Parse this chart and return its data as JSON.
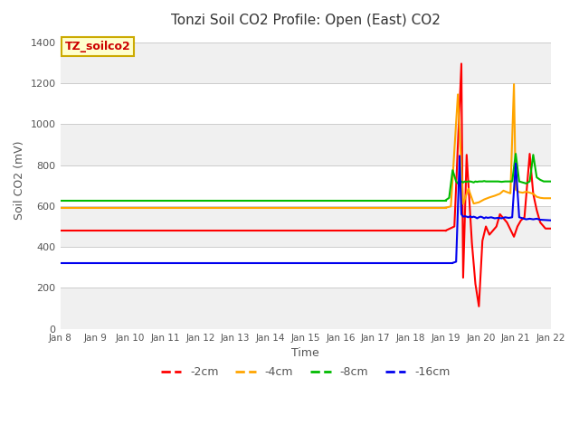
{
  "title": "Tonzi Soil CO2 Profile: Open (East) CO2",
  "xlabel": "Time",
  "ylabel": "Soil CO2 (mV)",
  "ylim": [
    0,
    1450
  ],
  "yticks": [
    0,
    200,
    400,
    600,
    800,
    1000,
    1200,
    1400
  ],
  "xlim_start": 8,
  "xlim_end": 22,
  "xtick_labels": [
    "Jan 8",
    "Jan 9",
    "Jan 10",
    "Jan 11",
    "Jan 12",
    "Jan 13",
    "Jan 14",
    "Jan 15",
    "Jan 16",
    "Jan 17",
    "Jan 18",
    "Jan 19",
    "Jan 20",
    "Jan 21",
    "Jan 22"
  ],
  "figure_bg": "#ffffff",
  "plot_bg_light": "#f0f0f0",
  "plot_bg_white": "#ffffff",
  "legend_label": "TZ_soilco2",
  "legend_box_color": "#ffffcc",
  "legend_box_edge": "#ccaa00",
  "series": [
    {
      "label": "-2cm",
      "color": "#ff0000",
      "flat_value": 480,
      "flat_start": 8,
      "flat_end": 19.0,
      "spike_x": [
        19.0,
        19.25,
        19.45,
        19.5,
        19.6,
        19.75,
        19.85,
        19.95,
        20.05,
        20.15,
        20.25,
        20.45,
        20.55,
        20.65,
        20.75,
        20.95,
        21.05,
        21.15,
        21.25,
        21.4,
        21.5,
        21.6,
        21.7,
        21.85,
        22.0
      ],
      "spike_y": [
        480,
        500,
        1295,
        250,
        850,
        420,
        220,
        110,
        430,
        500,
        460,
        500,
        560,
        540,
        520,
        450,
        500,
        530,
        545,
        855,
        660,
        580,
        520,
        490,
        490
      ]
    },
    {
      "label": "-4cm",
      "color": "#ffa500",
      "flat_value": 592,
      "flat_start": 8,
      "flat_end": 19.0,
      "spike_x": [
        19.0,
        19.15,
        19.35,
        19.5,
        19.65,
        19.8,
        19.95,
        20.1,
        20.25,
        20.4,
        20.55,
        20.65,
        20.75,
        20.85,
        20.95,
        21.0,
        21.1,
        21.2,
        21.3,
        21.5,
        21.6,
        21.7,
        21.8,
        22.0
      ],
      "spike_y": [
        592,
        598,
        1145,
        610,
        685,
        612,
        618,
        632,
        642,
        650,
        660,
        675,
        668,
        662,
        1195,
        680,
        668,
        665,
        670,
        660,
        645,
        640,
        638,
        638
      ]
    },
    {
      "label": "-8cm",
      "color": "#00bb00",
      "flat_value": 628,
      "flat_start": 8,
      "flat_end": 19.0,
      "spike_x": [
        19.0,
        19.1,
        19.2,
        19.3,
        19.35,
        19.4,
        19.45,
        19.5,
        19.55,
        19.6,
        19.65,
        19.7,
        19.75,
        19.8,
        19.85,
        19.9,
        19.95,
        20.0,
        20.05,
        20.1,
        20.15,
        20.2,
        20.3,
        20.4,
        20.5,
        20.6,
        20.7,
        20.8,
        20.9,
        21.0,
        21.1,
        21.2,
        21.3,
        21.4,
        21.5,
        21.6,
        21.7,
        21.8,
        22.0
      ],
      "spike_y": [
        628,
        640,
        775,
        720,
        710,
        715,
        720,
        715,
        720,
        718,
        720,
        720,
        718,
        715,
        720,
        718,
        720,
        720,
        720,
        722,
        720,
        720,
        720,
        720,
        720,
        718,
        720,
        720,
        720,
        855,
        720,
        715,
        710,
        720,
        850,
        740,
        728,
        720,
        720
      ]
    },
    {
      "label": "-16cm",
      "color": "#0000ee",
      "flat_value": 322,
      "flat_start": 8,
      "flat_end": 19.2,
      "spike_x": [
        19.2,
        19.3,
        19.4,
        19.45,
        19.5,
        19.55,
        19.6,
        19.65,
        19.7,
        19.75,
        19.8,
        19.85,
        19.9,
        19.95,
        20.0,
        20.05,
        20.1,
        20.15,
        20.2,
        20.3,
        20.4,
        20.5,
        20.6,
        20.7,
        20.8,
        20.9,
        21.0,
        21.1,
        21.2,
        21.3,
        21.4,
        21.5,
        21.6,
        21.7,
        21.8,
        22.0
      ],
      "spike_y": [
        322,
        328,
        845,
        560,
        548,
        550,
        548,
        545,
        550,
        545,
        548,
        545,
        540,
        545,
        548,
        545,
        540,
        545,
        542,
        545,
        540,
        542,
        540,
        545,
        542,
        545,
        808,
        545,
        540,
        535,
        538,
        535,
        538,
        533,
        532,
        530
      ]
    }
  ],
  "legend_entries": [
    {
      "label": "-2cm",
      "color": "#ff0000"
    },
    {
      "label": "-4cm",
      "color": "#ffa500"
    },
    {
      "label": "-8cm",
      "color": "#00bb00"
    },
    {
      "label": "-16cm",
      "color": "#0000ee"
    }
  ],
  "band_colors": [
    "#f0f0f0",
    "#ffffff"
  ]
}
